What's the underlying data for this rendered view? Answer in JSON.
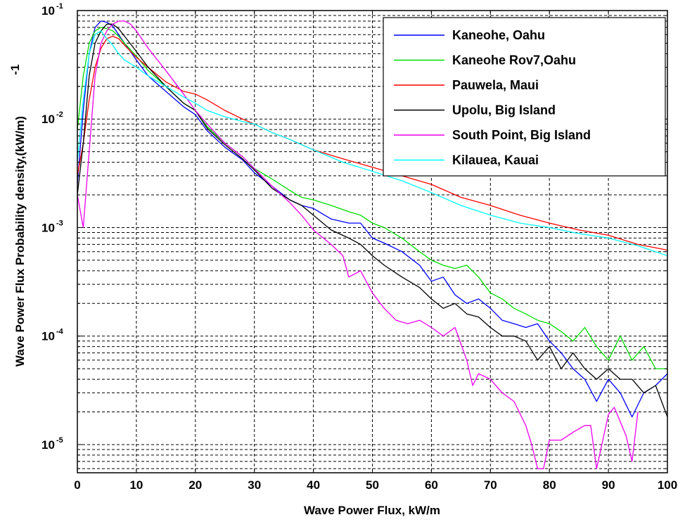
{
  "chart_data": {
    "type": "line",
    "title": "",
    "xlabel": "Wave Power Flux, kW/m",
    "ylabel": "Wave Power Flux Probability density,(kW/m)",
    "ylabel_exponent": "-1",
    "xlim": [
      0,
      100
    ],
    "ylim": [
      5.5e-06,
      0.1
    ],
    "yscale": "log",
    "grid": true,
    "x_ticks": [
      "0",
      "10",
      "20",
      "30",
      "40",
      "50",
      "60",
      "70",
      "80",
      "90",
      "100"
    ],
    "y_ticks": [
      {
        "base": "10",
        "exp": "-1"
      },
      {
        "base": "10",
        "exp": "-2"
      },
      {
        "base": "10",
        "exp": "-3"
      },
      {
        "base": "10",
        "exp": "-4"
      },
      {
        "base": "10",
        "exp": "-5"
      }
    ],
    "legend_position": "top-right",
    "series": [
      {
        "name": "Kaneohe, Oahu",
        "color": "#0000ff",
        "x": [
          0,
          1,
          2,
          3,
          4,
          5,
          6,
          7,
          8,
          10,
          12,
          15,
          18,
          20,
          22,
          25,
          28,
          30,
          33,
          36,
          38,
          40,
          43,
          46,
          48,
          50,
          52,
          55,
          58,
          60,
          62,
          64,
          66,
          68,
          70,
          72,
          74,
          76,
          78,
          80,
          82,
          84,
          86,
          88,
          90,
          92,
          94,
          96,
          98,
          100
        ],
        "y": [
          0.0025,
          0.012,
          0.04,
          0.07,
          0.08,
          0.078,
          0.072,
          0.06,
          0.05,
          0.035,
          0.025,
          0.018,
          0.013,
          0.011,
          0.0078,
          0.0055,
          0.0042,
          0.0032,
          0.0024,
          0.0018,
          0.0016,
          0.0015,
          0.0012,
          0.0011,
          0.0011,
          0.0008,
          0.00072,
          0.0006,
          0.00045,
          0.00032,
          0.00035,
          0.00024,
          0.0002,
          0.00022,
          0.00018,
          0.00014,
          0.00013,
          0.00012,
          0.00013,
          9e-05,
          7e-05,
          5e-05,
          4e-05,
          2.5e-05,
          4e-05,
          3e-05,
          1.8e-05,
          3e-05,
          3.5e-05,
          4.5e-05
        ]
      },
      {
        "name": "Kaneohe Rov7,Oahu",
        "color": "#00dd00",
        "x": [
          0,
          1,
          2,
          3,
          4,
          5,
          6,
          7,
          8,
          10,
          12,
          15,
          18,
          20,
          22,
          25,
          28,
          30,
          33,
          36,
          38,
          40,
          43,
          46,
          48,
          50,
          52,
          55,
          58,
          60,
          62,
          64,
          66,
          68,
          70,
          72,
          74,
          76,
          78,
          80,
          82,
          84,
          86,
          88,
          90,
          92,
          94,
          96,
          98,
          100
        ],
        "y": [
          0.008,
          0.025,
          0.05,
          0.065,
          0.07,
          0.068,
          0.065,
          0.058,
          0.05,
          0.038,
          0.028,
          0.02,
          0.014,
          0.012,
          0.0085,
          0.006,
          0.0045,
          0.0035,
          0.0028,
          0.0022,
          0.0019,
          0.0018,
          0.0016,
          0.0014,
          0.0013,
          0.0011,
          0.001,
          0.0008,
          0.0006,
          0.0005,
          0.00045,
          0.00042,
          0.00045,
          0.00035,
          0.00025,
          0.00022,
          0.00018,
          0.00016,
          0.00014,
          0.00013,
          0.00011,
          9e-05,
          0.00012,
          8e-05,
          6e-05,
          0.0001,
          6e-05,
          8e-05,
          5e-05,
          5e-05
        ]
      },
      {
        "name": "Pauwela, Maui",
        "color": "#ff0000",
        "x": [
          0,
          1,
          2,
          3,
          4,
          5,
          6,
          7,
          8,
          10,
          12,
          15,
          18,
          20,
          22,
          25,
          28,
          30,
          33,
          36,
          40,
          45,
          50,
          55,
          60,
          65,
          70,
          75,
          80,
          85,
          90,
          95,
          100
        ],
        "y": [
          0.003,
          0.006,
          0.015,
          0.03,
          0.045,
          0.055,
          0.058,
          0.055,
          0.048,
          0.037,
          0.03,
          0.022,
          0.018,
          0.017,
          0.015,
          0.012,
          0.01,
          0.009,
          0.0075,
          0.0065,
          0.0052,
          0.0043,
          0.0036,
          0.003,
          0.0025,
          0.0019,
          0.0016,
          0.0013,
          0.0011,
          0.00095,
          0.00085,
          0.0007,
          0.00062
        ]
      },
      {
        "name": "Upolu, Big Island",
        "color": "#000000",
        "x": [
          0,
          1,
          2,
          3,
          4,
          5,
          6,
          7,
          8,
          10,
          12,
          15,
          18,
          20,
          22,
          25,
          28,
          30,
          33,
          36,
          38,
          40,
          43,
          46,
          48,
          50,
          52,
          55,
          58,
          60,
          62,
          64,
          66,
          68,
          70,
          72,
          74,
          76,
          78,
          80,
          82,
          84,
          86,
          88,
          90,
          92,
          94,
          96,
          98,
          100
        ],
        "y": [
          0.002,
          0.006,
          0.025,
          0.05,
          0.065,
          0.075,
          0.075,
          0.068,
          0.058,
          0.042,
          0.03,
          0.02,
          0.014,
          0.012,
          0.0082,
          0.0058,
          0.0043,
          0.0034,
          0.0023,
          0.0018,
          0.0016,
          0.0013,
          0.00095,
          0.0008,
          0.0007,
          0.00055,
          0.00045,
          0.00035,
          0.00028,
          0.00022,
          0.00018,
          0.0002,
          0.00016,
          0.00015,
          0.00012,
          0.0001,
          0.0001,
          9e-05,
          6e-05,
          8e-05,
          5e-05,
          7e-05,
          5e-05,
          4e-05,
          5e-05,
          4e-05,
          4e-05,
          3e-05,
          3.5e-05,
          1.8e-05
        ]
      },
      {
        "name": "South Point, Big Island",
        "color": "#ee00ee",
        "x": [
          0,
          1,
          2,
          3,
          4,
          5,
          6,
          7,
          8,
          9,
          10,
          12,
          15,
          18,
          20,
          22,
          25,
          28,
          30,
          33,
          36,
          38,
          40,
          43,
          45,
          46,
          48,
          50,
          52,
          54,
          56,
          58,
          60,
          62,
          64,
          66,
          67,
          68,
          70,
          72,
          74,
          76,
          77,
          78,
          79,
          80,
          82,
          84,
          86,
          87,
          88,
          90,
          91,
          93,
          94,
          95
        ],
        "y": [
          0.002,
          0.001,
          0.005,
          0.025,
          0.05,
          0.065,
          0.075,
          0.08,
          0.08,
          0.075,
          0.065,
          0.045,
          0.028,
          0.017,
          0.012,
          0.009,
          0.006,
          0.0045,
          0.0035,
          0.0024,
          0.0017,
          0.0013,
          0.00095,
          0.0007,
          0.00055,
          0.00035,
          0.0004,
          0.00025,
          0.00018,
          0.00014,
          0.00013,
          0.00014,
          0.00012,
          0.0001,
          0.00012,
          6e-05,
          3.5e-05,
          4.5e-05,
          4e-05,
          3e-05,
          2.5e-05,
          1.5e-05,
          1e-05,
          6e-06,
          6e-06,
          1.1e-05,
          1.1e-05,
          1.3e-05,
          1.5e-05,
          1.5e-05,
          6e-06,
          1.9e-05,
          2.2e-05,
          1.2e-05,
          7e-06,
          2e-05
        ]
      },
      {
        "name": "Kilauea, Kauai",
        "color": "#00ffff",
        "x": [
          0,
          1,
          2,
          3,
          4,
          5,
          6,
          7,
          8,
          10,
          12,
          15,
          18,
          20,
          22,
          25,
          28,
          30,
          33,
          36,
          40,
          45,
          50,
          55,
          60,
          65,
          70,
          75,
          80,
          85,
          90,
          95,
          100
        ],
        "y": [
          0.004,
          0.015,
          0.04,
          0.06,
          0.065,
          0.055,
          0.048,
          0.04,
          0.035,
          0.03,
          0.025,
          0.02,
          0.016,
          0.014,
          0.012,
          0.0105,
          0.0095,
          0.009,
          0.0075,
          0.0065,
          0.0052,
          0.004,
          0.0033,
          0.0027,
          0.0021,
          0.0016,
          0.0013,
          0.0011,
          0.001,
          0.00088,
          0.0008,
          0.00068,
          0.00055
        ]
      }
    ]
  }
}
